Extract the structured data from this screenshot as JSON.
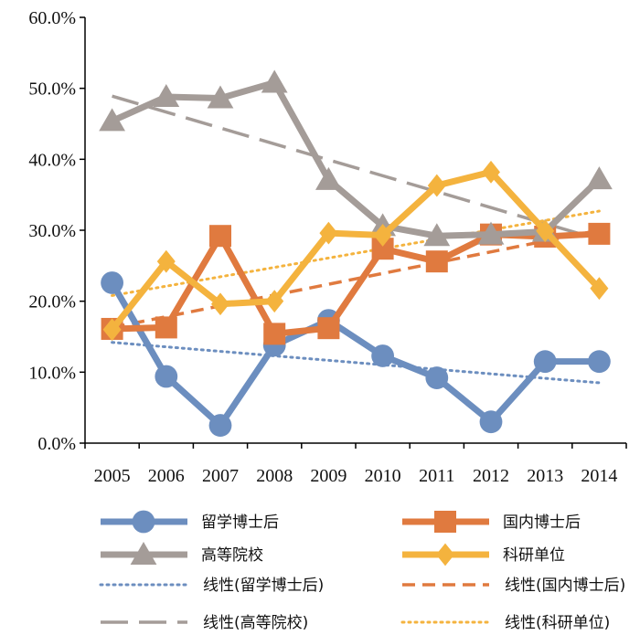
{
  "chart_data": {
    "type": "line",
    "categories": [
      "2005",
      "2006",
      "2007",
      "2008",
      "2009",
      "2010",
      "2011",
      "2012",
      "2013",
      "2014"
    ],
    "ylim": [
      0,
      60
    ],
    "y_ticks": [
      "0.0%",
      "10.0%",
      "20.0%",
      "30.0%",
      "40.0%",
      "50.0%",
      "60.0%"
    ],
    "y_tick_values": [
      0,
      10,
      20,
      30,
      40,
      50,
      60
    ],
    "grid": false,
    "legend_position": "bottom",
    "series": [
      {
        "name": "留学博士后",
        "marker": "circle",
        "color": "#6c8ebf",
        "values": [
          22.6,
          9.4,
          2.5,
          13.8,
          17.3,
          12.3,
          9.2,
          3.0,
          11.5,
          11.5
        ]
      },
      {
        "name": "国内博士后",
        "marker": "square",
        "color": "#e07a3f",
        "values": [
          16.1,
          16.3,
          29.2,
          15.4,
          16.2,
          27.4,
          25.6,
          29.4,
          29.1,
          29.5
        ]
      },
      {
        "name": "高等院校",
        "marker": "triangle",
        "color": "#a49c98",
        "values": [
          45.4,
          48.8,
          48.6,
          50.8,
          37.1,
          30.6,
          29.2,
          29.4,
          29.8,
          37.2
        ]
      },
      {
        "name": "科研单位",
        "marker": "diamond",
        "color": "#f4b33e",
        "values": [
          16.0,
          25.6,
          19.6,
          20.0,
          29.6,
          29.3,
          36.3,
          38.2,
          29.9,
          21.8
        ]
      }
    ],
    "trendlines": [
      {
        "name": "线性(留学博士后)",
        "style": "dotted",
        "color": "#6c8ebf",
        "start": 14.2,
        "end": 8.5
      },
      {
        "name": "线性(国内博士后)",
        "style": "dashed",
        "color": "#e07a3f",
        "start": 16.3,
        "end": 30.0
      },
      {
        "name": "线性(高等院校)",
        "style": "longdash",
        "color": "#a49c98",
        "start": 48.9,
        "end": 28.7
      },
      {
        "name": "线性(科研单位)",
        "style": "dotted",
        "color": "#f4b33e",
        "start": 20.8,
        "end": 32.7
      }
    ]
  }
}
